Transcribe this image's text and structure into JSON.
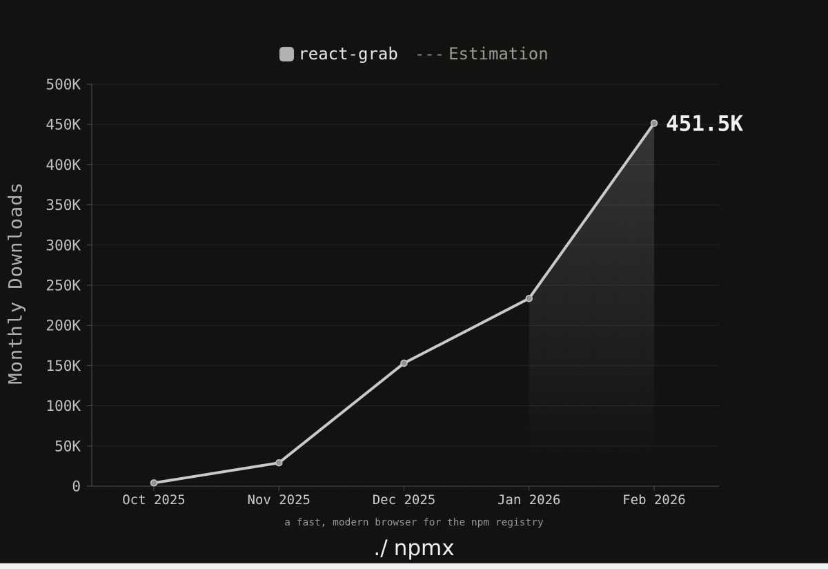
{
  "page": {
    "background": "#131110",
    "bottom_strip_color": "#f3f2f0"
  },
  "legend": {
    "series_label": "react-grab",
    "swatch_color": "#b4b2b0",
    "estimation_dashes": "---",
    "estimation_label": "Estimation"
  },
  "footer": {
    "tagline": "a fast, modern browser for the npm registry",
    "brand_prefix": "./",
    "brand_name": "npmx"
  },
  "chart_data": {
    "type": "line",
    "title": "",
    "xlabel": "",
    "ylabel": "Monthly Downloads",
    "categories": [
      "Oct 2025",
      "Nov 2025",
      "Dec 2025",
      "Jan 2026",
      "Feb 2026"
    ],
    "series": [
      {
        "name": "react-grab",
        "values": [
          4000,
          29000,
          153000,
          233500,
          451500
        ]
      }
    ],
    "estimated_segment": {
      "from_index": 3,
      "to_index": 4
    },
    "annotation": {
      "text": "451.5K",
      "point_index": 4
    },
    "ylim": [
      0,
      500000
    ],
    "ytick_step": 50000,
    "ytick_labels": [
      "0",
      "50K",
      "100K",
      "150K",
      "200K",
      "250K",
      "300K",
      "350K",
      "400K",
      "450K",
      "500K"
    ],
    "grid": "horizontal",
    "legend_position": "top",
    "colors": {
      "line": "#cbc9c7",
      "point": "#949290",
      "grid": "rgba(255,255,255,0.07)",
      "axis": "#504e4c",
      "ytick_text": "#c3c1bf",
      "xtick_text": "#d0cecc",
      "annotation_text": "#f3f1ef",
      "fill_top": "rgba(240,238,236,0.16)",
      "fill_bottom": "rgba(240,238,236,0.0)"
    }
  }
}
